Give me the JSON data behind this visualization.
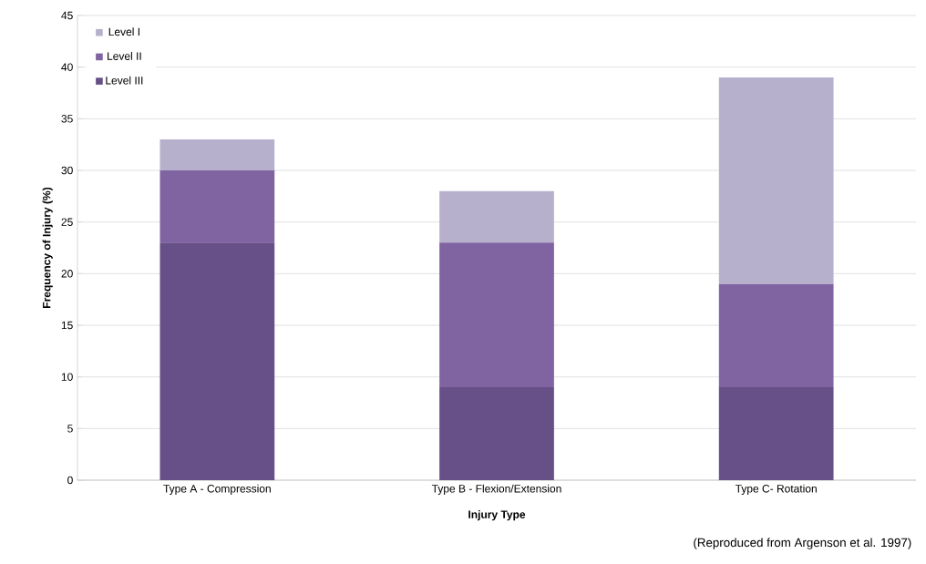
{
  "chart_data": {
    "type": "bar",
    "stacked": true,
    "xlabel": "Injury Type",
    "ylabel": "Frequency of Injury (%)",
    "categories": [
      "Type A - Compression",
      "Type B - Flexion/Extension",
      "Type C- Rotation"
    ],
    "series": [
      {
        "name": "Level III",
        "color": "#674f88",
        "values": [
          23,
          9,
          9
        ]
      },
      {
        "name": "Level II",
        "color": "#8064a2",
        "values": [
          7,
          14,
          10
        ]
      },
      {
        "name": "Level I",
        "color": "#b7b0cc",
        "values": [
          3,
          5,
          20
        ]
      }
    ],
    "ylim": [
      0,
      45
    ],
    "yticks": [
      0,
      5,
      10,
      15,
      20,
      25,
      30,
      35,
      40,
      45
    ],
    "grid": "y",
    "legend": "top left",
    "annotations": [
      "(Reproduced from Argenson et al. 1997)"
    ]
  }
}
